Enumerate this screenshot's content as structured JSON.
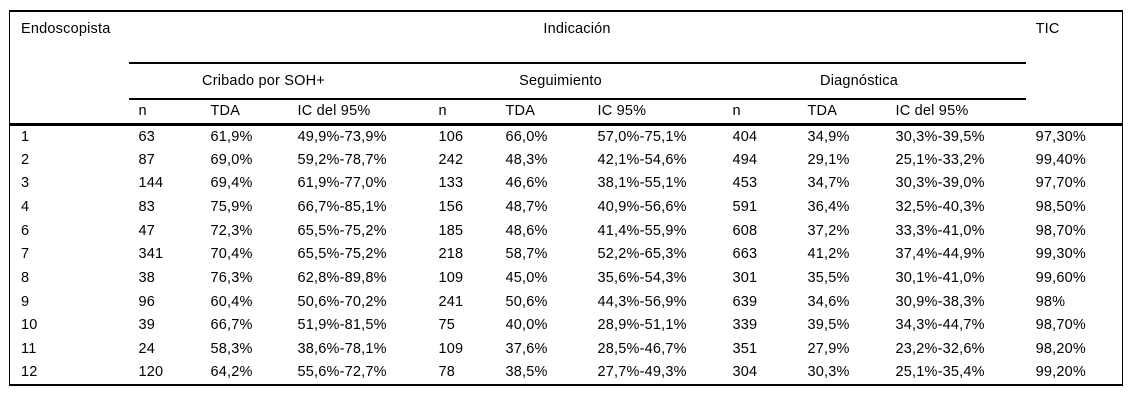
{
  "colors": {
    "background": "#ffffff",
    "text": "#000000",
    "rule_lines": "#000000"
  },
  "table": {
    "corner_header": "Endoscopista",
    "span_header": "Indicación",
    "tic_header": "TIC",
    "groups": [
      {
        "label": "Cribado por SOH+",
        "subheaders": [
          "n",
          "TDA",
          "IC del 95%"
        ]
      },
      {
        "label": "Seguimiento",
        "subheaders": [
          "n",
          "TDA",
          "IC 95%"
        ]
      },
      {
        "label": "Diagnóstica",
        "subheaders": [
          "n",
          "TDA",
          "IC del 95%"
        ]
      }
    ],
    "rows": [
      {
        "id": "1",
        "cells": [
          "63",
          "61,9%",
          "49,9%-73,9%",
          "106",
          "66,0%",
          "57,0%-75,1%",
          "404",
          "34,9%",
          "30,3%-39,5%",
          "97,30%"
        ]
      },
      {
        "id": "2",
        "cells": [
          "87",
          "69,0%",
          "59,2%-78,7%",
          "242",
          "48,3%",
          "42,1%-54,6%",
          "494",
          "29,1%",
          "25,1%-33,2%",
          "99,40%"
        ]
      },
      {
        "id": "3",
        "cells": [
          "144",
          "69,4%",
          "61,9%-77,0%",
          "133",
          "46,6%",
          "38,1%-55,1%",
          "453",
          "34,7%",
          "30,3%-39,0%",
          "97,70%"
        ]
      },
      {
        "id": "4",
        "cells": [
          "83",
          "75,9%",
          "66,7%-85,1%",
          "156",
          "48,7%",
          "40,9%-56,6%",
          "591",
          "36,4%",
          "32,5%-40,3%",
          "98,50%"
        ]
      },
      {
        "id": "6",
        "cells": [
          "47",
          "72,3%",
          "65,5%-75,2%",
          "185",
          "48,6%",
          "41,4%-55,9%",
          "608",
          "37,2%",
          "33,3%-41,0%",
          "98,70%"
        ]
      },
      {
        "id": "7",
        "cells": [
          "341",
          "70,4%",
          "65,5%-75,2%",
          "218",
          "58,7%",
          "52,2%-65,3%",
          "663",
          "41,2%",
          "37,4%-44,9%",
          "99,30%"
        ]
      },
      {
        "id": "8",
        "cells": [
          "38",
          "76,3%",
          "62,8%-89,8%",
          "109",
          "45,0%",
          "35,6%-54,3%",
          "301",
          "35,5%",
          "30,1%-41,0%",
          "99,60%"
        ]
      },
      {
        "id": "9",
        "cells": [
          "96",
          "60,4%",
          "50,6%-70,2%",
          "241",
          "50,6%",
          "44,3%-56,9%",
          "639",
          "34,6%",
          "30,9%-38,3%",
          "98%"
        ]
      },
      {
        "id": "10",
        "cells": [
          "39",
          "66,7%",
          "51,9%-81,5%",
          "75",
          "40,0%",
          "28,9%-51,1%",
          "339",
          "39,5%",
          "34,3%-44,7%",
          "98,70%"
        ]
      },
      {
        "id": "11",
        "cells": [
          "24",
          "58,3%",
          "38,6%-78,1%",
          "109",
          "37,6%",
          "28,5%-46,7%",
          "351",
          "27,9%",
          "23,2%-32,6%",
          "98,20%"
        ]
      },
      {
        "id": "12",
        "cells": [
          "120",
          "64,2%",
          "55,6%-72,7%",
          "78",
          "38,5%",
          "27,7%-49,3%",
          "304",
          "30,3%",
          "25,1%-35,4%",
          "99,20%"
        ]
      }
    ]
  }
}
